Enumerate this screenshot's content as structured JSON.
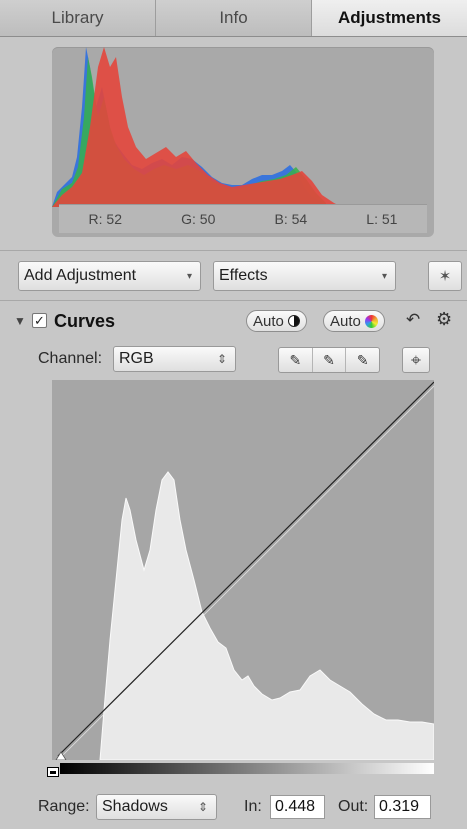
{
  "tabs": [
    "Library",
    "Info",
    "Adjustments"
  ],
  "active_tab": "Adjustments",
  "histogram_readout": {
    "r": "R: 52",
    "g": "G: 50",
    "b": "B: 54",
    "l": "L: 51"
  },
  "controls": {
    "add_adjustment": "Add Adjustment",
    "effects": "Effects"
  },
  "curves": {
    "title": "Curves",
    "checked": "✓",
    "auto_contrast": "Auto",
    "auto_color": "Auto",
    "channel_label": "Channel:",
    "channel_value": "RGB",
    "range_label": "Range:",
    "range_value": "Shadows",
    "in_label": "In:",
    "in_value": "0.448",
    "out_label": "Out:",
    "out_value": "0.319"
  },
  "icons": {
    "disclosure": "▼",
    "dropdown_arrow": "▾",
    "stepper": "⇕",
    "reset": "↶",
    "gear": "⚙",
    "wand": "✶",
    "crosshair": "⌖",
    "eyedropper": "✎"
  },
  "colors": {
    "red": "#e3463c",
    "green": "#37b24a",
    "blue": "#2e6fe0",
    "histogram_white": "#f2f2f2"
  }
}
